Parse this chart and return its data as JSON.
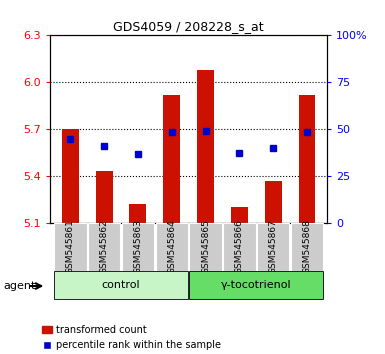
{
  "title": "GDS4059 / 208228_s_at",
  "samples": [
    "GSM545861",
    "GSM545862",
    "GSM545863",
    "GSM545864",
    "GSM545865",
    "GSM545866",
    "GSM545867",
    "GSM545868"
  ],
  "transformed_count": [
    5.7,
    5.43,
    5.22,
    5.92,
    6.08,
    5.2,
    5.37,
    5.92
  ],
  "percentile_rank": [
    5.64,
    5.59,
    5.54,
    5.68,
    5.69,
    5.55,
    5.58,
    5.68
  ],
  "bar_bottom": 5.1,
  "ylim": [
    5.1,
    6.3
  ],
  "yticks_left": [
    5.1,
    5.4,
    5.7,
    6.0,
    6.3
  ],
  "yticks_right": [
    0,
    25,
    50,
    75,
    100
  ],
  "ytick_right_labels": [
    "0",
    "25",
    "50",
    "75",
    "100%"
  ],
  "groups": [
    {
      "label": "control",
      "indices": [
        0,
        1,
        2,
        3
      ],
      "color": "#c8f5c8"
    },
    {
      "label": "γ-tocotrienol",
      "indices": [
        4,
        5,
        6,
        7
      ],
      "color": "#66dd66"
    }
  ],
  "bar_color": "#cc1100",
  "marker_color": "#0000cc",
  "bar_width": 0.5,
  "tick_label_bg": "#cccccc",
  "agent_label": "agent",
  "legend_items": [
    "transformed count",
    "percentile rank within the sample"
  ]
}
